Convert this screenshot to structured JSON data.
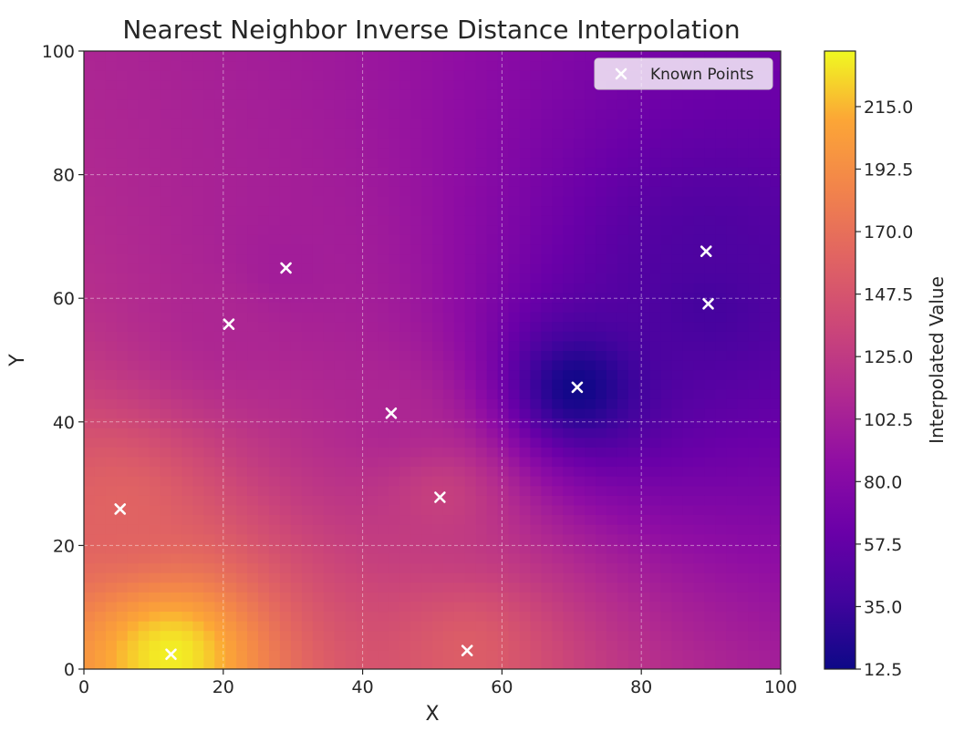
{
  "chart_data": {
    "type": "heatmap",
    "title": "Nearest Neighbor Inverse Distance Interpolation",
    "xlabel": "X",
    "ylabel": "Y",
    "xlim": [
      0,
      100
    ],
    "ylim": [
      0,
      100
    ],
    "x_ticks": [
      0,
      20,
      40,
      60,
      80,
      100
    ],
    "y_ticks": [
      0,
      20,
      40,
      60,
      80,
      100
    ],
    "grid": true,
    "colormap": "plasma",
    "colorbar": {
      "label": "Interpolated Value",
      "range": [
        12.5,
        235
      ],
      "ticks": [
        "12.5",
        "35.0",
        "57.5",
        "80.0",
        "102.5",
        "125.0",
        "147.5",
        "170.0",
        "192.5",
        "215.0"
      ]
    },
    "legend": {
      "position": "top-right",
      "entries": [
        "Known Points"
      ]
    },
    "known_points": [
      {
        "x": 5.2,
        "y": 25.9,
        "value": 160
      },
      {
        "x": 12.5,
        "y": 2.4,
        "value": 232
      },
      {
        "x": 20.8,
        "y": 55.8,
        "value": 108
      },
      {
        "x": 29.0,
        "y": 64.9,
        "value": 100
      },
      {
        "x": 44.1,
        "y": 41.4,
        "value": 108
      },
      {
        "x": 51.1,
        "y": 27.8,
        "value": 130
      },
      {
        "x": 55.0,
        "y": 3.0,
        "value": 155
      },
      {
        "x": 70.8,
        "y": 45.6,
        "value": 14
      },
      {
        "x": 89.3,
        "y": 67.6,
        "value": 45
      },
      {
        "x": 89.6,
        "y": 59.1,
        "value": 40
      }
    ]
  }
}
